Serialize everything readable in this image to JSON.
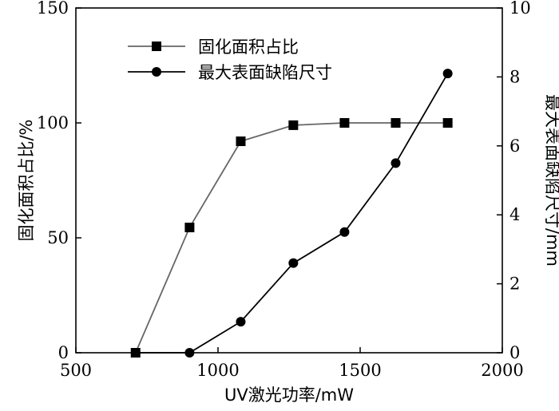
{
  "chart_data": {
    "type": "line",
    "x": [
      710,
      900,
      1080,
      1265,
      1445,
      1625,
      1808
    ],
    "xlabel": "UV激光功率/mW",
    "xlim": [
      500,
      2000
    ],
    "xticks": [
      "500",
      "1000",
      "1500",
      "2000"
    ],
    "ylabel_left": "固化面积占比/%",
    "ylim_left": [
      0,
      150
    ],
    "yticks_left": [
      "0",
      "50",
      "100",
      "150"
    ],
    "ylabel_right": "最大表面缺陷尺寸/mm",
    "ylim_right": [
      0,
      10
    ],
    "yticks_right": [
      "0",
      "2",
      "4",
      "6",
      "8",
      "10"
    ],
    "series": [
      {
        "name": "固化面积占比",
        "axis": "left",
        "marker": "square",
        "color": "#666666",
        "values": [
          0,
          54.5,
          92,
          99,
          100,
          100,
          100
        ]
      },
      {
        "name": "最大表面缺陷尺寸",
        "axis": "right",
        "marker": "circle",
        "color": "#000000",
        "values": [
          0,
          0,
          0.9,
          2.6,
          3.5,
          5.5,
          8.1
        ]
      }
    ],
    "legend": "top-left",
    "grid": false
  }
}
